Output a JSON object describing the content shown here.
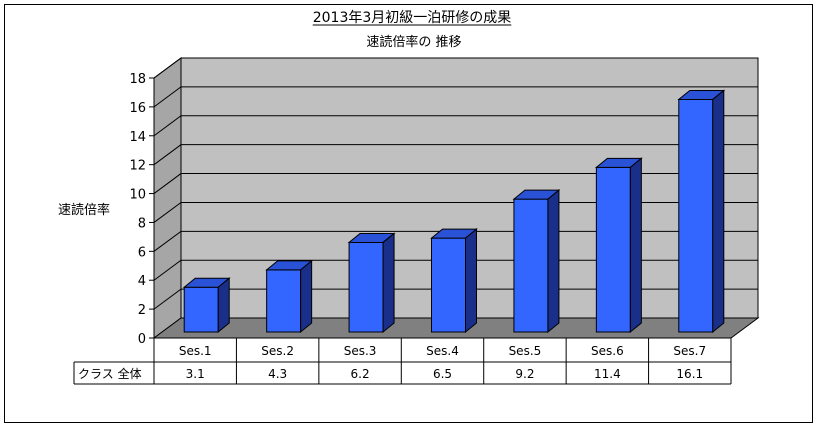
{
  "chart_data": {
    "type": "bar",
    "title": "2013年3月初級一泊研修の成果",
    "subtitle": "速読倍率の 推移",
    "ylabel": "速読倍率",
    "xlabel": "",
    "ylim": [
      0,
      18
    ],
    "yticks": [
      0,
      2,
      4,
      6,
      8,
      10,
      12,
      14,
      16,
      18
    ],
    "categories": [
      "Ses.1",
      "Ses.2",
      "Ses.3",
      "Ses.4",
      "Ses.5",
      "Ses.6",
      "Ses.7"
    ],
    "series": [
      {
        "name": "クラス 全体",
        "values": [
          3.1,
          4.3,
          6.2,
          6.5,
          9.2,
          11.4,
          16.1
        ],
        "labels": [
          "3.1",
          "4.3",
          "6.2",
          "6.5",
          "9.2",
          "11.4",
          "16.1"
        ]
      }
    ],
    "grid": true,
    "data_table": true,
    "colors": {
      "bar_front": "#3366ff",
      "bar_top": "#2a52d6",
      "bar_side": "#1a2f8a",
      "wall": "#c0c0c0",
      "floor": "#808080",
      "side_wall": "#a6a6a6"
    }
  }
}
